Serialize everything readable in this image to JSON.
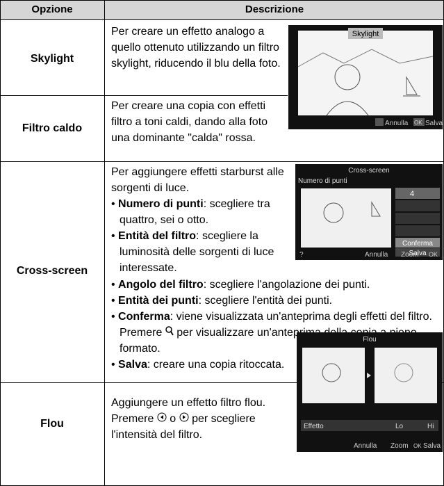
{
  "header": {
    "option": "Opzione",
    "description": "Descrizione"
  },
  "rows": [
    {
      "label": "Skylight",
      "description": "Per creare un effetto analogo a quello ottenuto utilizzando un filtro skylight, riducendo il blu della foto."
    },
    {
      "label": "Filtro caldo",
      "description": "Per creare una copia con effetti filtro a toni caldi, dando alla foto una dominante \"calda\" rossa."
    },
    {
      "label": "Cross-screen",
      "description": "Per aggiungere effetti starburst alle sorgenti di luce.",
      "bullets": [
        {
          "term": "Numero di punti",
          "text": ": scegliere tra quattro, sei o otto."
        },
        {
          "term": "Entità del filtro",
          "text": ": scegliere la luminosità delle sorgenti di luce interessate."
        },
        {
          "term": "Angolo del filtro",
          "text": ": scegliere l'angolazione dei punti."
        },
        {
          "term": "Entità dei punti",
          "text": ": scegliere l'entità dei punti."
        },
        {
          "term": "Conferma",
          "text": ": viene visualizzata un'anteprima degli effetti del filtro.  Premere",
          "text_after": "per visualizzare un'anteprima della copia a pieno formato."
        },
        {
          "term": "Salva",
          "text": ": creare una copia ritoccata."
        }
      ]
    },
    {
      "label": "Flou",
      "description": "Aggiungere un effetto filtro flou.  Premere",
      "description_mid": "o",
      "description_after": "per scegliere l'intensità del filtro."
    }
  ],
  "screens": {
    "skylight": {
      "title": "Skylight",
      "cancel": "Annulla",
      "ok": "OK",
      "save": "Salva"
    },
    "cross": {
      "title": "Cross-screen",
      "subtitle": "Numero di punti",
      "points": "4",
      "confirm": "Conferma",
      "save": "Salva",
      "help": "?",
      "cancel": "Annulla",
      "zoom": "Zoom",
      "ok": "OK"
    },
    "flou": {
      "title": "Flou",
      "effect": "Effetto",
      "lo": "Lo",
      "hi": "Hi",
      "cancel": "Annulla",
      "zoom": "Zoom",
      "ok": "OK",
      "save": "Salva"
    }
  }
}
